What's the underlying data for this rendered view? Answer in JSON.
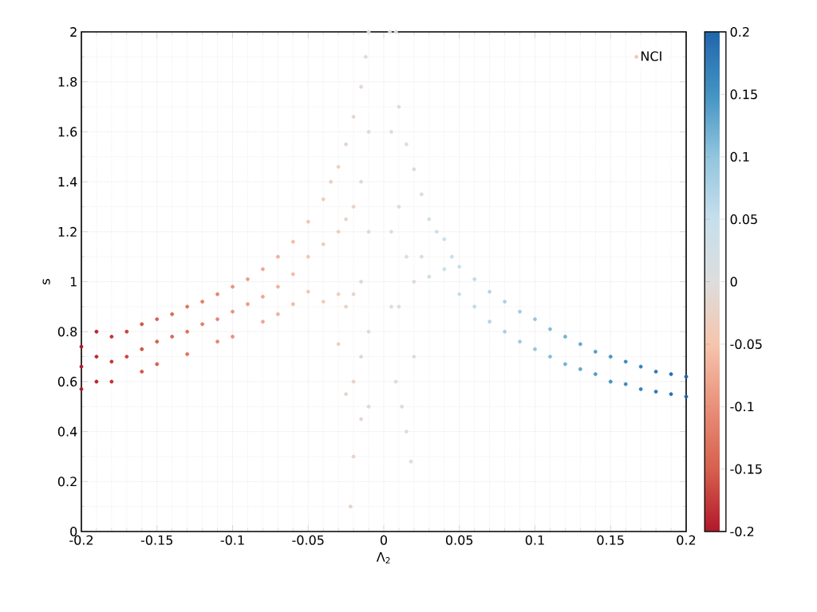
{
  "chart_data": {
    "type": "scatter",
    "xlabel": "Λ$_{2}$",
    "ylabel": "s",
    "xlim": [
      -0.2,
      0.2
    ],
    "ylim": [
      0,
      2
    ],
    "xticks": [
      -0.2,
      -0.15,
      -0.1,
      -0.05,
      0,
      0.05,
      0.1,
      0.15,
      0.2
    ],
    "yticks": [
      0,
      0.2,
      0.4,
      0.6,
      0.8,
      1,
      1.2,
      1.4,
      1.6,
      1.8,
      2
    ],
    "clim": [
      -0.2,
      0.2
    ],
    "cticks": [
      -0.2,
      -0.15,
      -0.1,
      -0.05,
      0,
      0.05,
      0.1,
      0.15,
      0.2
    ],
    "grid": true,
    "legend": "top right",
    "marker": "circle",
    "series": [
      {
        "name": "NCI",
        "x": [
          -0.2,
          -0.2,
          -0.2,
          -0.19,
          -0.19,
          -0.19,
          -0.18,
          -0.18,
          -0.18,
          -0.17,
          -0.17,
          -0.16,
          -0.16,
          -0.16,
          -0.15,
          -0.15,
          -0.15,
          -0.14,
          -0.14,
          -0.13,
          -0.13,
          -0.13,
          -0.12,
          -0.12,
          -0.11,
          -0.11,
          -0.11,
          -0.1,
          -0.1,
          -0.1,
          -0.09,
          -0.09,
          -0.08,
          -0.08,
          -0.08,
          -0.07,
          -0.07,
          -0.07,
          -0.06,
          -0.06,
          -0.06,
          -0.05,
          -0.05,
          -0.05,
          -0.04,
          -0.04,
          -0.04,
          -0.035,
          -0.03,
          -0.03,
          -0.03,
          -0.03,
          -0.025,
          -0.025,
          -0.025,
          -0.025,
          -0.02,
          -0.02,
          -0.02,
          -0.02,
          -0.02,
          -0.022,
          -0.015,
          -0.015,
          -0.015,
          -0.015,
          -0.015,
          -0.012,
          -0.01,
          -0.01,
          -0.01,
          -0.01,
          -0.01,
          0.004,
          0.008,
          0.005,
          0.01,
          0.005,
          0.01,
          0.015,
          0.005,
          0.01,
          0.008,
          0.012,
          0.015,
          0.018,
          0.015,
          0.02,
          0.02,
          0.02,
          0.025,
          0.025,
          0.03,
          0.03,
          0.035,
          0.04,
          0.04,
          0.045,
          0.05,
          0.05,
          0.06,
          0.06,
          0.07,
          0.07,
          0.08,
          0.08,
          0.09,
          0.09,
          0.1,
          0.1,
          0.11,
          0.11,
          0.12,
          0.12,
          0.13,
          0.13,
          0.14,
          0.14,
          0.15,
          0.15,
          0.16,
          0.16,
          0.17,
          0.17,
          0.18,
          0.18,
          0.19,
          0.19,
          0.2,
          0.2
        ],
        "values": [
          0.74,
          0.66,
          0.57,
          0.8,
          0.7,
          0.6,
          0.78,
          0.68,
          0.6,
          0.8,
          0.7,
          0.83,
          0.73,
          0.64,
          0.85,
          0.76,
          0.67,
          0.87,
          0.78,
          0.9,
          0.8,
          0.71,
          0.92,
          0.83,
          0.95,
          0.85,
          0.76,
          0.98,
          0.88,
          0.78,
          1.01,
          0.91,
          1.05,
          0.94,
          0.84,
          1.1,
          0.98,
          0.87,
          1.16,
          1.03,
          0.91,
          1.24,
          1.1,
          0.96,
          1.33,
          1.15,
          0.92,
          1.4,
          1.46,
          1.2,
          0.95,
          0.75,
          1.55,
          1.25,
          0.9,
          0.55,
          1.66,
          1.3,
          0.95,
          0.6,
          0.3,
          0.1,
          1.78,
          1.4,
          1.0,
          0.7,
          0.45,
          1.9,
          2.0,
          1.6,
          1.2,
          0.8,
          0.5,
          2.0,
          2.0,
          1.6,
          1.7,
          1.2,
          1.3,
          1.55,
          0.9,
          0.9,
          0.6,
          0.5,
          0.4,
          0.28,
          1.1,
          1.45,
          1.0,
          0.7,
          1.35,
          1.1,
          1.25,
          1.02,
          1.2,
          1.17,
          1.05,
          1.1,
          1.06,
          0.95,
          1.01,
          0.9,
          0.96,
          0.84,
          0.92,
          0.8,
          0.88,
          0.76,
          0.85,
          0.73,
          0.81,
          0.7,
          0.78,
          0.67,
          0.75,
          0.65,
          0.72,
          0.63,
          0.7,
          0.6,
          0.68,
          0.59,
          0.66,
          0.57,
          0.64,
          0.56,
          0.63,
          0.55,
          0.62,
          0.54
        ],
        "cvalues": [
          -0.2,
          -0.2,
          -0.2,
          -0.19,
          -0.19,
          -0.19,
          -0.18,
          -0.18,
          -0.18,
          -0.17,
          -0.17,
          -0.16,
          -0.16,
          -0.16,
          -0.15,
          -0.15,
          -0.15,
          -0.14,
          -0.14,
          -0.13,
          -0.13,
          -0.13,
          -0.12,
          -0.12,
          -0.11,
          -0.11,
          -0.11,
          -0.1,
          -0.1,
          -0.1,
          -0.09,
          -0.09,
          -0.08,
          -0.08,
          -0.08,
          -0.07,
          -0.07,
          -0.07,
          -0.06,
          -0.06,
          -0.06,
          -0.05,
          -0.05,
          -0.05,
          -0.04,
          -0.04,
          -0.04,
          -0.035,
          -0.03,
          -0.03,
          -0.03,
          -0.03,
          -0.025,
          -0.025,
          -0.025,
          -0.025,
          -0.02,
          -0.02,
          -0.02,
          -0.02,
          -0.02,
          -0.022,
          -0.015,
          -0.015,
          -0.015,
          -0.015,
          -0.015,
          -0.012,
          -0.01,
          -0.01,
          -0.01,
          -0.01,
          -0.01,
          0.004,
          0.008,
          0.005,
          0.01,
          0.005,
          0.01,
          0.015,
          0.005,
          0.01,
          0.008,
          0.012,
          0.015,
          0.018,
          0.015,
          0.02,
          0.02,
          0.02,
          0.025,
          0.025,
          0.03,
          0.03,
          0.035,
          0.04,
          0.04,
          0.045,
          0.05,
          0.05,
          0.06,
          0.06,
          0.07,
          0.07,
          0.08,
          0.08,
          0.09,
          0.09,
          0.1,
          0.1,
          0.11,
          0.11,
          0.12,
          0.12,
          0.13,
          0.13,
          0.14,
          0.14,
          0.15,
          0.15,
          0.16,
          0.16,
          0.17,
          0.17,
          0.18,
          0.18,
          0.19,
          0.19,
          0.2,
          0.2
        ]
      }
    ]
  }
}
